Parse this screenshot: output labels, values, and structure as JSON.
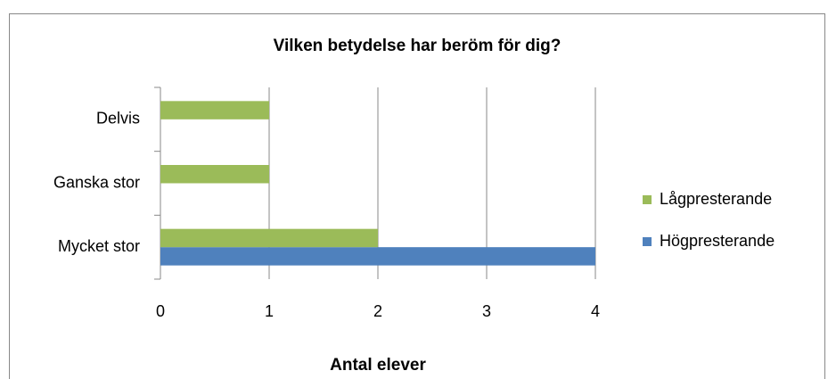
{
  "chart_data": {
    "type": "bar",
    "orientation": "horizontal",
    "title": "Vilken betydelse har beröm för dig?",
    "x_label": "Antal elever",
    "categories": [
      "Mycket stor",
      "Ganska stor",
      "Delvis"
    ],
    "series": [
      {
        "name": "Högpresterande",
        "color": "#4f81bd",
        "values": [
          4,
          0,
          0
        ]
      },
      {
        "name": "Lågpresterande",
        "color": "#9bbb59",
        "values": [
          2,
          1,
          1
        ]
      }
    ],
    "xlim": [
      0,
      4
    ],
    "xticks": [
      0,
      1,
      2,
      3,
      4
    ],
    "grid": true,
    "legend": "right"
  }
}
